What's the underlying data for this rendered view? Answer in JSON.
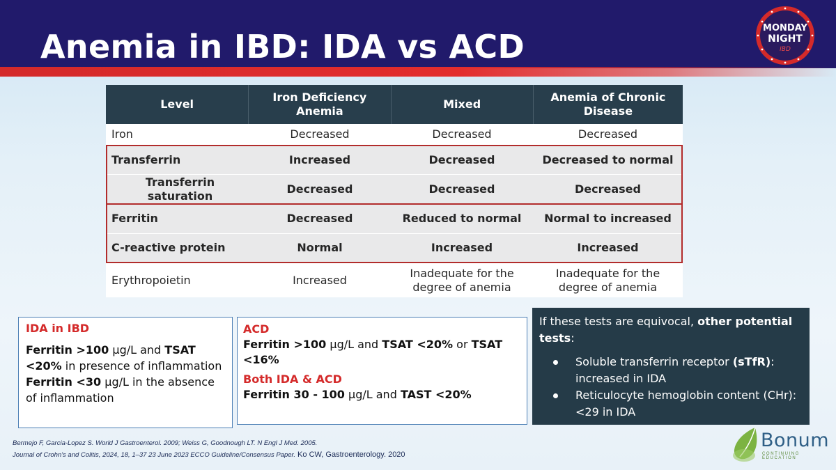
{
  "slide": {
    "title": "Anemia in IBD: IDA vs ACD",
    "logo_text_top": "MONDAY",
    "logo_text_bottom": "NIGHT",
    "logo_text_sub": "IBD"
  },
  "table": {
    "headers": [
      "Level",
      "Iron Deficiency Anemia",
      "Mixed",
      "Anemia of Chronic Disease"
    ],
    "rows": [
      [
        "Iron",
        "Decreased",
        "Decreased",
        "Decreased"
      ],
      [
        "Transferrin",
        "Increased",
        "Decreased",
        "Decreased to normal"
      ],
      [
        "Transferrin saturation",
        "Decreased",
        "Decreased",
        "Decreased"
      ],
      [
        "Ferritin",
        "Decreased",
        "Reduced to normal",
        "Normal to increased"
      ],
      [
        "C-reactive protein",
        "Normal",
        "Increased",
        "Increased"
      ],
      [
        "Erythropoietin",
        "Increased",
        "Inadequate for the degree of anemia",
        "Inadequate for the degree of anemia"
      ]
    ]
  },
  "box_ida": {
    "heading": "IDA in IBD",
    "l1_a": "Ferritin >100",
    "l1_b": " µg/L and ",
    "l1_c": "TSAT <20%",
    "l1_d": " in presence of inflammation",
    "l2_a": "Ferritin <30",
    "l2_b": " µg/L in the absence of inflammation"
  },
  "box_acd": {
    "heading": "ACD",
    "l1_a": "Ferritin >100",
    "l1_b": " µg/L and ",
    "l1_c": "TSAT <20%",
    "l1_d": " or ",
    "l1_e": "TSAT <16%",
    "heading2": "Both IDA & ACD",
    "l2_a": "Ferritin 30 - 100",
    "l2_b": " µg/L and ",
    "l2_c": "TAST <20%"
  },
  "box_other": {
    "intro_a": "If these tests are equivocal, ",
    "intro_b": "other potential tests",
    "intro_c": ":",
    "b1_a": "Soluble transferrin receptor ",
    "b1_b": "(sTfR)",
    "b1_c": ": increased in IDA",
    "b2": "Reticulocyte hemoglobin content (CHr): <29 in IDA"
  },
  "references": {
    "line1": "Bermejo F, Garcia-Lopez S. World J Gastroenterol. 2009; Weiss G, Goodnough LT. N Engl J Med. 2005.",
    "line2_a": "Journal of Crohn's and Colitis, 2024, 18, 1–37 23 June 2023 ECCO Guideline/Consensus Paper.",
    "line2_b": " Ko CW, Gastroenterology. 2020"
  },
  "bonum": {
    "name": "Bonum",
    "tagline": "CONTINUING EDUCATION"
  },
  "colors": {
    "header": "#211a6b",
    "accent_red": "#d42a2a",
    "table_header": "#283e4c",
    "highlight_row": "#e9e9ea",
    "dark_box": "#253b48"
  }
}
